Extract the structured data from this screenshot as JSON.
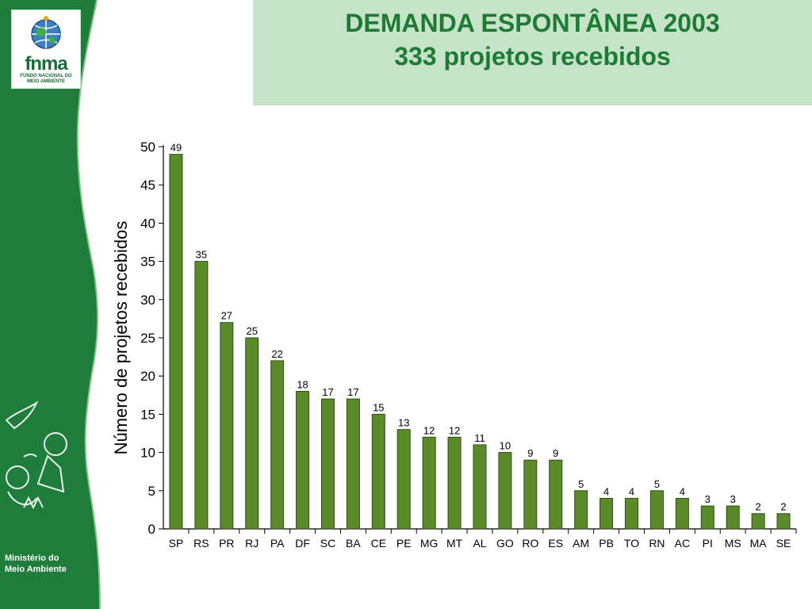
{
  "header": {
    "title_line1": "DEMANDA ESPONTÂNEA 2003",
    "title_line2": "333 projetos recebidos"
  },
  "logo": {
    "name": "fnma",
    "subtitle": "FUNDO NACIONAL DO MEIO AMBIENTE"
  },
  "footer": {
    "ministry_line1": "Ministério do",
    "ministry_line2": "Meio Ambiente"
  },
  "colors": {
    "sidebar_green": "#1e7d3a",
    "header_panel": "#c5e3c6",
    "title_green": "#1e7a35",
    "bar_fill": "#5a8a2a",
    "bar_stroke": "#2f4f12"
  },
  "chart_data": {
    "type": "bar",
    "title": "",
    "xlabel": "",
    "ylabel": "Número de projetos recebidos",
    "categories": [
      "SP",
      "RS",
      "PR",
      "RJ",
      "PA",
      "DF",
      "SC",
      "BA",
      "CE",
      "PE",
      "MG",
      "MT",
      "AL",
      "GO",
      "RO",
      "ES",
      "AM",
      "PB",
      "TO",
      "RN",
      "AC",
      "PI",
      "MS",
      "MA",
      "SE"
    ],
    "values": [
      49,
      35,
      27,
      25,
      22,
      18,
      17,
      17,
      15,
      13,
      12,
      12,
      11,
      10,
      9,
      9,
      5,
      4,
      4,
      5,
      4,
      3,
      3,
      2,
      2
    ],
    "ylim": [
      0,
      50
    ],
    "yticks": [
      0,
      5,
      10,
      15,
      20,
      25,
      30,
      35,
      40,
      45,
      50
    ],
    "grid": false,
    "data_labels": true
  }
}
